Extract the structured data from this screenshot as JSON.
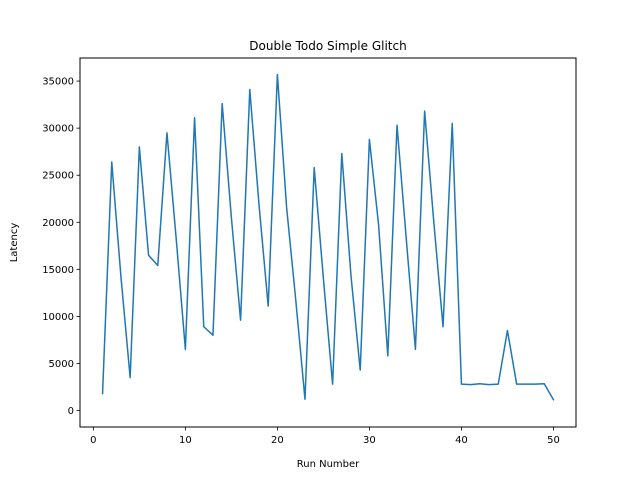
{
  "chart_data": {
    "type": "line",
    "title": "Double Todo Simple Glitch",
    "xlabel": "Run Number",
    "ylabel": "Latency",
    "xlim": [
      -1.45,
      52.45
    ],
    "ylim": [
      -1750,
      37450
    ],
    "xticks": [
      0,
      10,
      20,
      30,
      40,
      50
    ],
    "yticks": [
      0,
      5000,
      10000,
      15000,
      20000,
      25000,
      30000,
      35000
    ],
    "grid": false,
    "line_color": "#1f77b4",
    "series": [
      {
        "x": [
          1,
          2,
          3,
          4,
          5,
          6,
          7,
          8,
          9,
          10,
          11,
          12,
          13,
          14,
          15,
          16,
          17,
          18,
          19,
          20,
          21,
          22,
          23,
          24,
          25,
          26,
          27,
          28,
          29,
          30,
          31,
          32,
          33,
          34,
          35,
          36,
          37,
          38,
          39,
          40,
          41,
          42,
          43,
          44,
          45,
          46,
          47,
          48,
          49,
          50
        ],
        "values": [
          1800,
          26400,
          14200,
          3500,
          28000,
          16500,
          15400,
          29500,
          18300,
          6500,
          31100,
          8900,
          8000,
          32600,
          20500,
          9600,
          34100,
          21900,
          11100,
          35700,
          21600,
          11700,
          1200,
          25800,
          14000,
          2800,
          27300,
          14300,
          4300,
          28800,
          19700,
          5800,
          30300,
          18300,
          6500,
          31800,
          20000,
          8900,
          30500,
          2800,
          2750,
          2850,
          2750,
          2800,
          8500,
          2800,
          2800,
          2800,
          2850,
          1150
        ]
      }
    ]
  }
}
